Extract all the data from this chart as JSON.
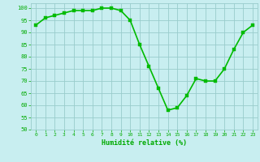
{
  "x": [
    0,
    1,
    2,
    3,
    4,
    5,
    6,
    7,
    8,
    9,
    10,
    11,
    12,
    13,
    14,
    15,
    16,
    17,
    18,
    19,
    20,
    21,
    22,
    23
  ],
  "y": [
    93,
    96,
    97,
    98,
    99,
    99,
    99,
    100,
    100,
    99,
    95,
    85,
    76,
    67,
    58,
    59,
    64,
    71,
    70,
    70,
    75,
    83,
    90,
    93
  ],
  "line_color": "#00bb00",
  "marker_color": "#00bb00",
  "bg_color": "#c8eef0",
  "grid_color": "#99cccc",
  "xlabel": "Humidité relative (%)",
  "xlabel_color": "#00aa00",
  "ylim": [
    50,
    102
  ],
  "xlim": [
    -0.5,
    23.5
  ],
  "yticks": [
    50,
    55,
    60,
    65,
    70,
    75,
    80,
    85,
    90,
    95,
    100
  ],
  "xticks": [
    0,
    1,
    2,
    3,
    4,
    5,
    6,
    7,
    8,
    9,
    10,
    11,
    12,
    13,
    14,
    15,
    16,
    17,
    18,
    19,
    20,
    21,
    22,
    23
  ],
  "tick_color": "#00aa00",
  "font_family": "monospace",
  "linewidth": 1.2,
  "markersize": 2.5
}
